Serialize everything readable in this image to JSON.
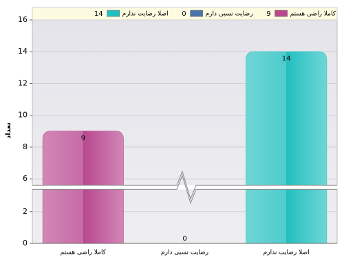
{
  "chart_data": {
    "type": "bar",
    "y_label": "تعداد",
    "categories": [
      "کاملا راضی هستم",
      "رضایت نسبی دارم",
      "اصلا رضایت ندارم"
    ],
    "values": [
      9,
      0,
      14
    ],
    "colors": [
      "#b8478f",
      "#4a74a8",
      "#22bfc0"
    ],
    "ylim": [
      0,
      16
    ],
    "yticks": [
      0,
      2,
      6,
      8,
      10,
      12,
      14,
      16
    ],
    "scale_break": [
      3.4,
      5.6
    ],
    "grid": true
  }
}
